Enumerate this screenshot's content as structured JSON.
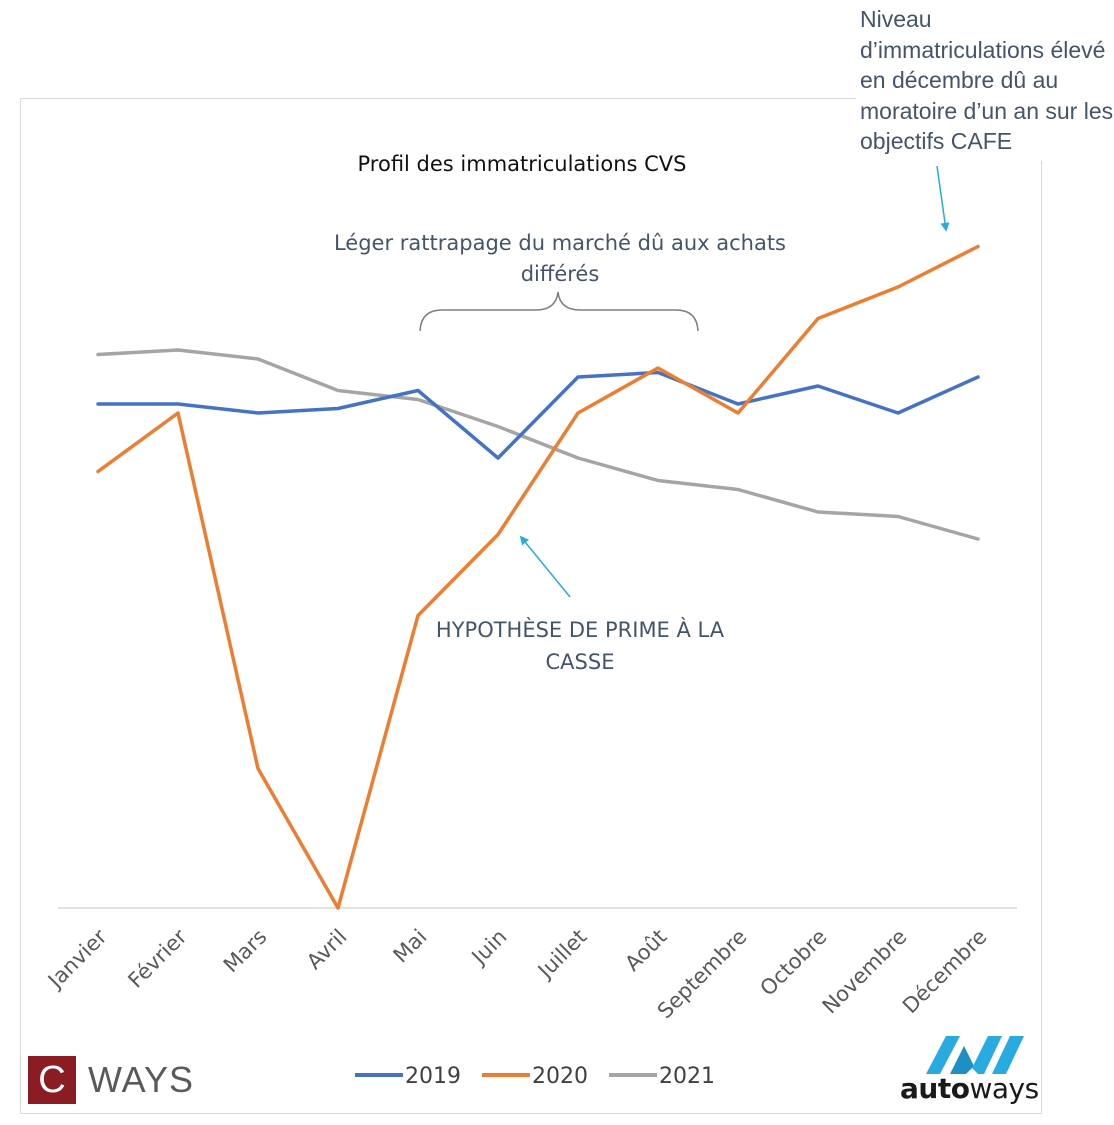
{
  "chart_data": {
    "type": "line",
    "title": "Profil des immatriculations CVS",
    "categories": [
      "Janvier",
      "Février",
      "Mars",
      "Avril",
      "Mai",
      "Juin",
      "Juillet",
      "Août",
      "Septembre",
      "Octobre",
      "Novembre",
      "Décembre"
    ],
    "series": [
      {
        "name": "2019",
        "color": "#4472c4",
        "values": [
          112,
          112,
          110,
          111,
          115,
          100,
          118,
          119,
          112,
          116,
          110,
          118
        ]
      },
      {
        "name": "2020",
        "color": "#ed7d31",
        "values": [
          97,
          110,
          31,
          0,
          65,
          83,
          110,
          120,
          110,
          131,
          138,
          147
        ]
      },
      {
        "name": "2021",
        "color": "#a5a5a5",
        "values": [
          123,
          124,
          122,
          115,
          113,
          107,
          100,
          95,
          93,
          88,
          87,
          82
        ]
      }
    ],
    "ylim": [
      0,
      150
    ],
    "grid": false,
    "legend": "bottom",
    "annotations": {
      "rattrapage": "Léger rattrapage du marché dû aux achats différés",
      "prime": "HYPOTHÈSE DE PRIME À LA CASSE",
      "cafe": "Niveau d’immatriculations élevé en décembre dû au moratoire d’un an sur les objectifs CAFE"
    },
    "annotation_color": "#44546a",
    "arrow_color": "#29abe2"
  },
  "logos": {
    "cways_letter": "C",
    "cways_text": "WAYS",
    "cways_color": "#8b1c24",
    "autoways_bold": "auto",
    "autoways_light": "ways",
    "autoways_color": "#29abe2"
  }
}
